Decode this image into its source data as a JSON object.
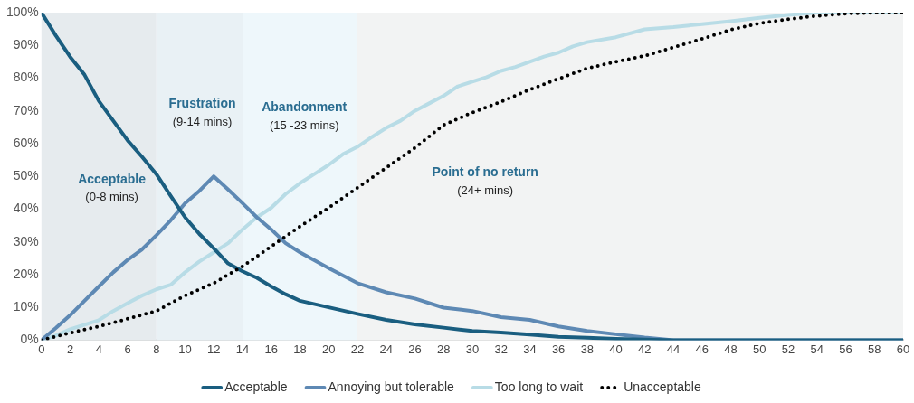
{
  "chart_data": {
    "type": "line",
    "xlim": [
      0,
      60
    ],
    "xticks": [
      0,
      2,
      4,
      6,
      8,
      10,
      12,
      14,
      16,
      18,
      20,
      22,
      24,
      26,
      28,
      30,
      32,
      34,
      36,
      38,
      40,
      42,
      44,
      46,
      48,
      50,
      52,
      54,
      56,
      58,
      60
    ],
    "ylim": [
      0,
      100
    ],
    "yticks": [
      {
        "value": 0,
        "label": "0%"
      },
      {
        "value": 10,
        "label": "10%"
      },
      {
        "value": 20,
        "label": "20%"
      },
      {
        "value": 30,
        "label": "30%"
      },
      {
        "value": 40,
        "label": "40%"
      },
      {
        "value": 50,
        "label": "50%"
      },
      {
        "value": 60,
        "label": "60%"
      },
      {
        "value": 70,
        "label": "70%"
      },
      {
        "value": 80,
        "label": "80%"
      },
      {
        "value": 90,
        "label": "90%"
      },
      {
        "value": 100,
        "label": "100%"
      }
    ],
    "grid": false,
    "legend": "bottom",
    "marker": "none",
    "bands": [
      {
        "axis": "x",
        "from": 0,
        "to": 8,
        "label": "Acceptable\n(0-8 mins)",
        "color": "#e6ebee"
      },
      {
        "axis": "x",
        "from": 8,
        "to": 14,
        "label": "Frustration\n(9-14 mins)",
        "color": "#e9f1f5"
      },
      {
        "axis": "x",
        "from": 14,
        "to": 22,
        "label": "Abandonment\n(15 -23 mins)",
        "color": "#eef7fb"
      },
      {
        "axis": "x",
        "from": 22,
        "to": 60,
        "label": "Point of no return\n(24+ mins)",
        "color": "#f2f3f3"
      }
    ],
    "series": [
      {
        "name": "Acceptable",
        "color": "#1a5e80",
        "line_style": "solid",
        "x": [
          0,
          1,
          2,
          3,
          4,
          5,
          6,
          7,
          8,
          9,
          10,
          11,
          12,
          13,
          14,
          15,
          16,
          17,
          18,
          20,
          22,
          24,
          26,
          28,
          30,
          32,
          34,
          36,
          38,
          40,
          42,
          44,
          60
        ],
        "values": [
          100,
          93,
          86.5,
          81,
          73,
          67,
          61,
          56,
          50.7,
          44,
          37.5,
          32.4,
          28,
          23.4,
          21,
          19,
          16.4,
          14,
          12,
          10,
          8,
          6.2,
          4.8,
          3.8,
          2.8,
          2.3,
          1.7,
          1,
          0.7,
          0.4,
          0.2,
          0,
          0
        ]
      },
      {
        "name": "Annoying but tolerable",
        "color": "#5e89b4",
        "line_style": "solid",
        "x": [
          0,
          1,
          2,
          3,
          4,
          5,
          6,
          7,
          8,
          9,
          10,
          11,
          12,
          13,
          14,
          15,
          16,
          17,
          18,
          19,
          20,
          22,
          24,
          26,
          28,
          30,
          32,
          34,
          36,
          38,
          40,
          42,
          44,
          60
        ],
        "values": [
          0,
          3.7,
          7.6,
          12,
          16.4,
          20.7,
          24.5,
          27.7,
          32,
          36.6,
          41.8,
          45.6,
          50,
          46,
          41.8,
          37.5,
          33.8,
          29.6,
          26.8,
          24.4,
          22,
          17.4,
          14.6,
          12.7,
          9.9,
          8.9,
          7,
          6.2,
          4.2,
          2.8,
          1.8,
          0.8,
          0,
          0
        ]
      },
      {
        "name": "Too long to wait",
        "color": "#b8dce6",
        "line_style": "solid",
        "x": [
          0,
          1,
          2,
          3,
          4,
          5,
          6,
          7,
          8,
          9,
          10,
          11,
          12,
          13,
          14,
          15,
          16,
          17,
          18,
          19,
          20,
          21,
          22,
          23,
          24,
          25,
          26,
          27,
          28,
          29,
          30,
          31,
          32,
          33,
          34,
          35,
          36,
          37,
          38,
          40,
          42,
          44,
          46,
          48,
          50,
          52,
          54,
          60
        ],
        "values": [
          0,
          1.4,
          3.3,
          4.7,
          6.1,
          8.9,
          11.3,
          13.6,
          15.5,
          16.9,
          20.7,
          24,
          26.8,
          29.6,
          33.8,
          37.5,
          40.4,
          44.6,
          47.9,
          50.7,
          53.5,
          56.8,
          59,
          62,
          64.8,
          67,
          70,
          72.3,
          74.6,
          77.5,
          78.9,
          80.3,
          82.2,
          83.4,
          85,
          86.6,
          87.8,
          89.7,
          91,
          92.5,
          94.9,
          95.6,
          96.5,
          97.4,
          98.4,
          99.3,
          100,
          100
        ]
      },
      {
        "name": "Unacceptable",
        "color": "#000000",
        "line_style": "dotted",
        "x": [
          0,
          2,
          4,
          6,
          8,
          10,
          12,
          14,
          16,
          18,
          20,
          22,
          24,
          26,
          28,
          30,
          32,
          34,
          36,
          38,
          40,
          42,
          44,
          46,
          48,
          50,
          52,
          54,
          56,
          58,
          60
        ],
        "values": [
          0,
          2.2,
          4.2,
          6.5,
          8.9,
          13.6,
          17.4,
          22.5,
          28.6,
          34.7,
          40.4,
          46.5,
          52.6,
          58.7,
          65.7,
          69.5,
          72.8,
          76.5,
          79.8,
          83,
          85,
          86.8,
          89.4,
          92,
          94.8,
          96.7,
          98,
          99,
          99.7,
          100,
          100
        ]
      }
    ]
  }
}
